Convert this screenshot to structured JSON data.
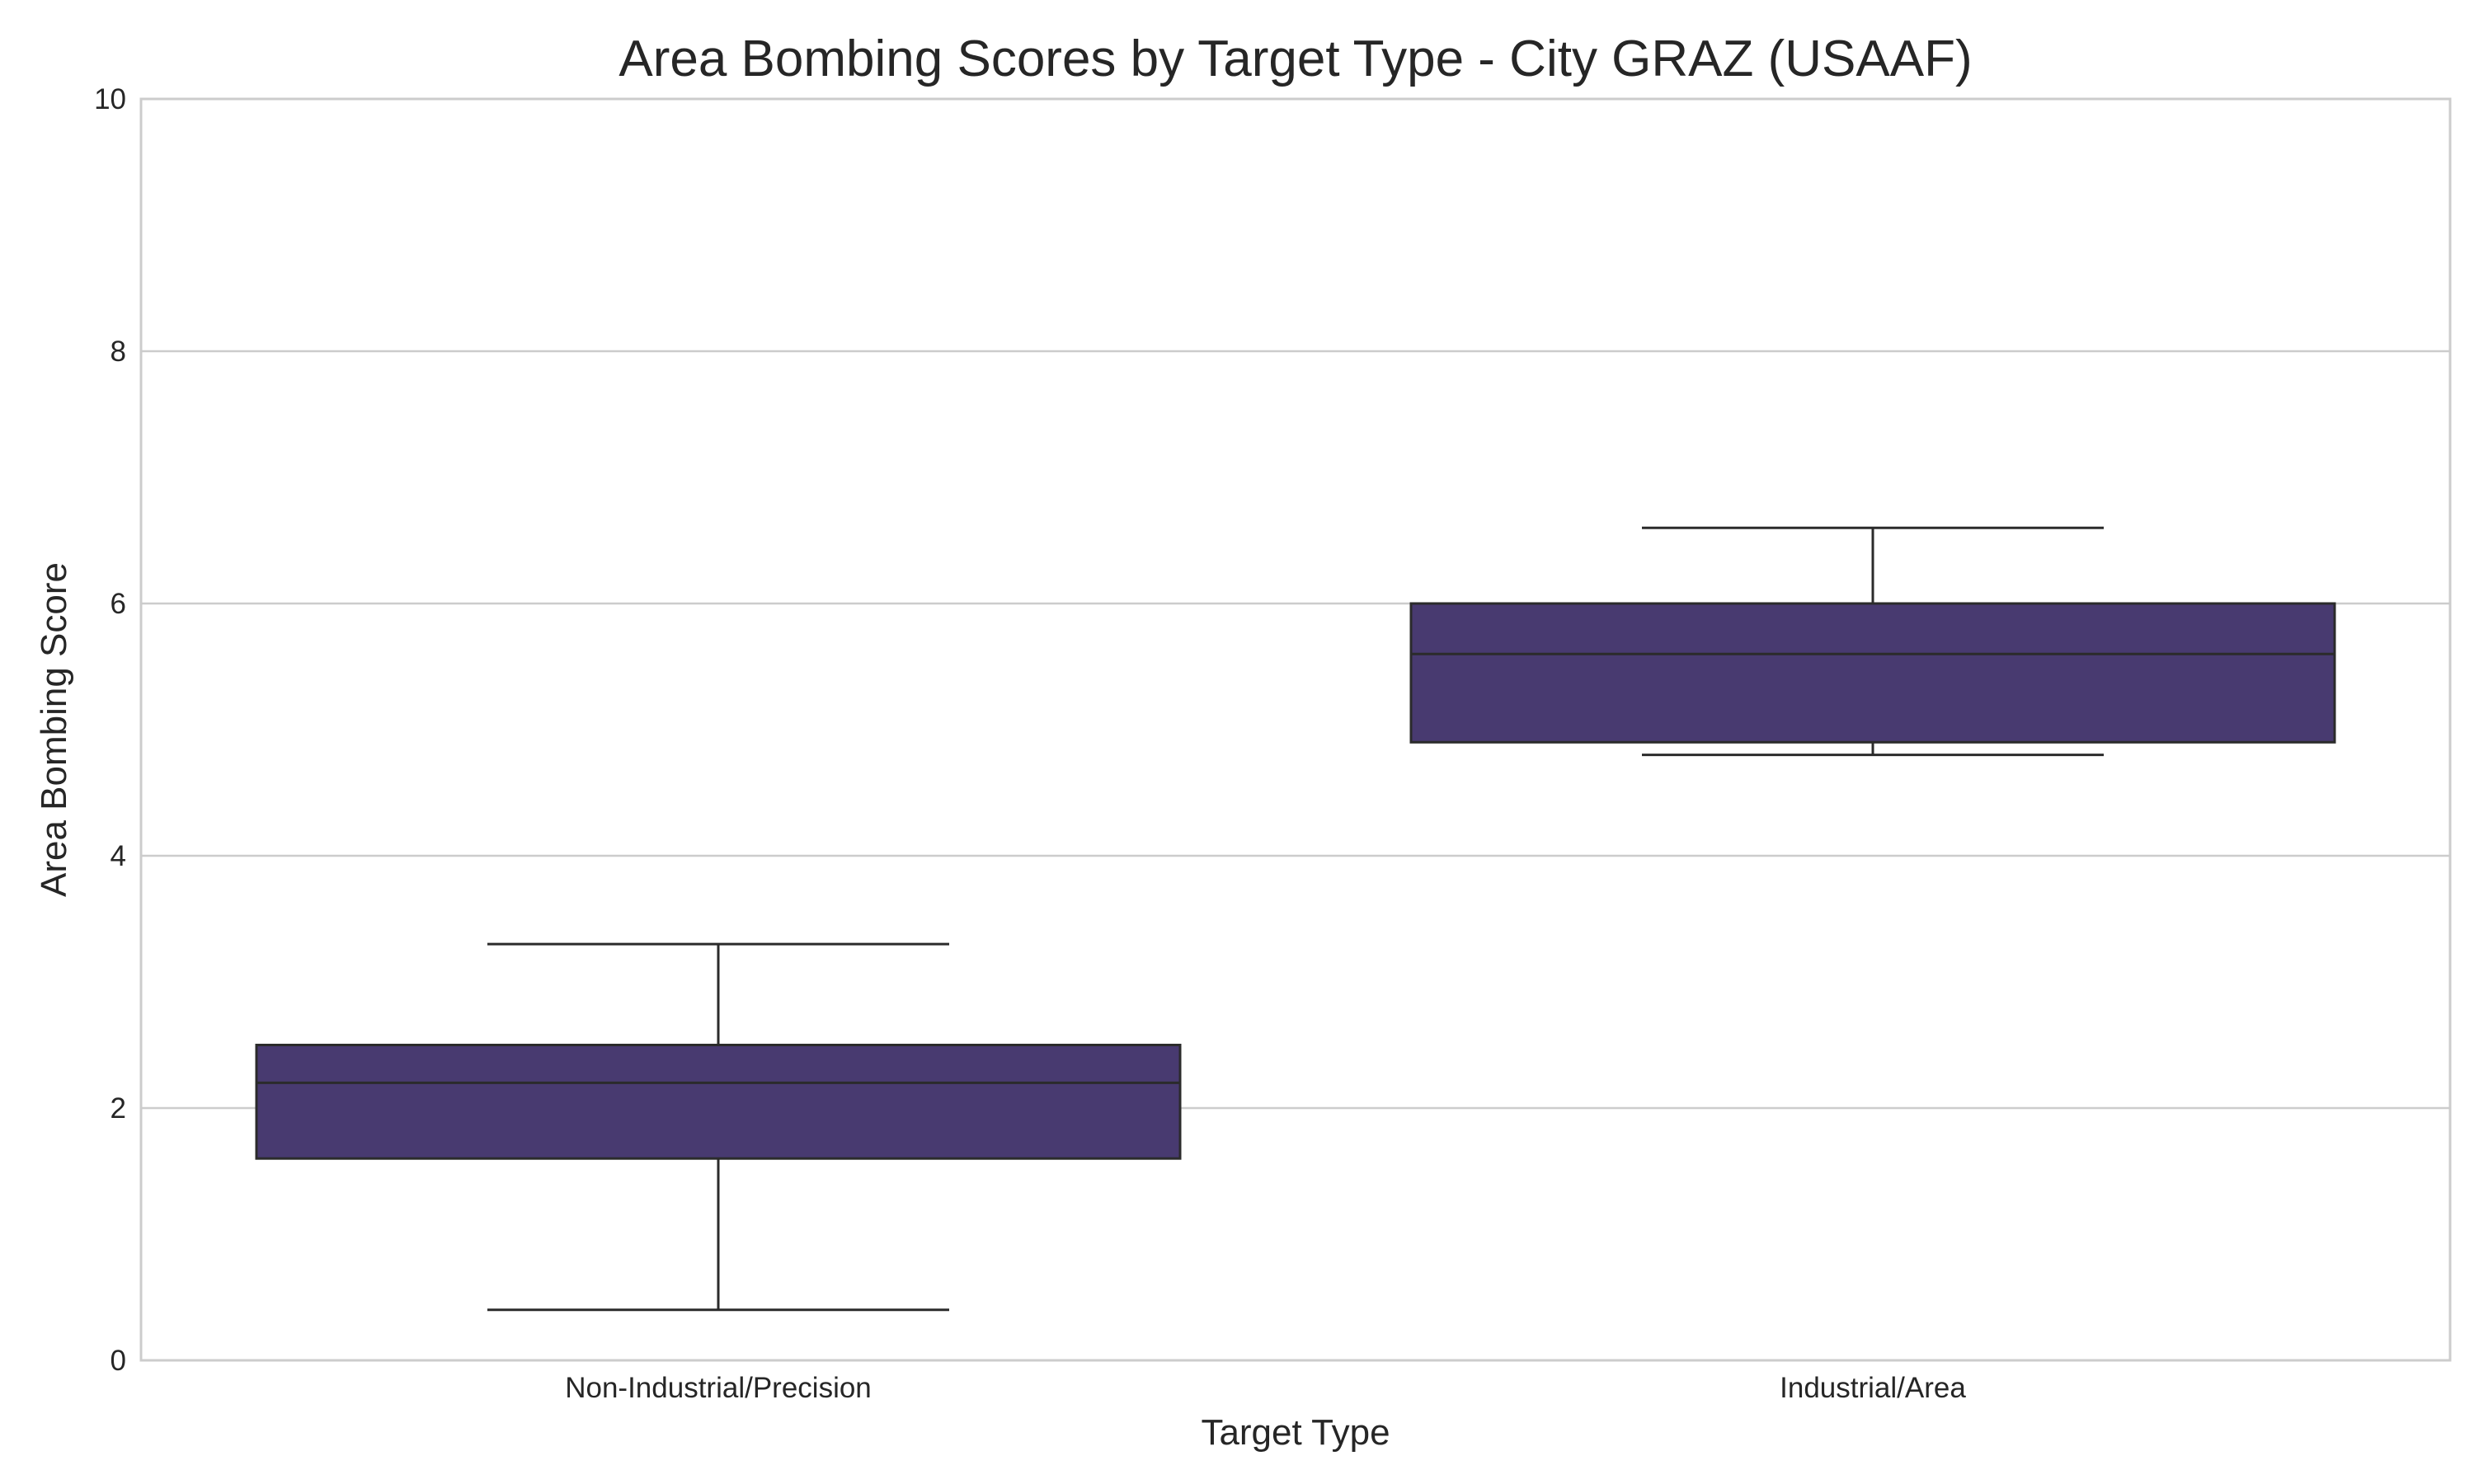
{
  "chart_data": {
    "type": "box",
    "title": "Area Bombing Scores by Target Type - City GRAZ (USAAF)",
    "xlabel": "Target Type",
    "ylabel": "Area Bombing Score",
    "ylim": [
      0,
      10
    ],
    "yticks": [
      "0",
      "2",
      "4",
      "6",
      "8",
      "10"
    ],
    "grid": "horizontal",
    "categories": [
      "Non-Industrial/Precision",
      "Industrial/Area"
    ],
    "boxes": [
      {
        "category": "Non-Industrial/Precision",
        "whisker_low": 0.4,
        "q1": 1.6,
        "median": 2.2,
        "q3": 2.5,
        "whisker_high": 3.3
      },
      {
        "category": "Industrial/Area",
        "whisker_low": 4.8,
        "q1": 4.9,
        "median": 5.6,
        "q3": 6.0,
        "whisker_high": 6.6
      }
    ],
    "colors": {
      "box_fill": "#483a70",
      "line": "#2b2b2b",
      "grid": "#cccccc",
      "frame": "#cccccc"
    }
  }
}
